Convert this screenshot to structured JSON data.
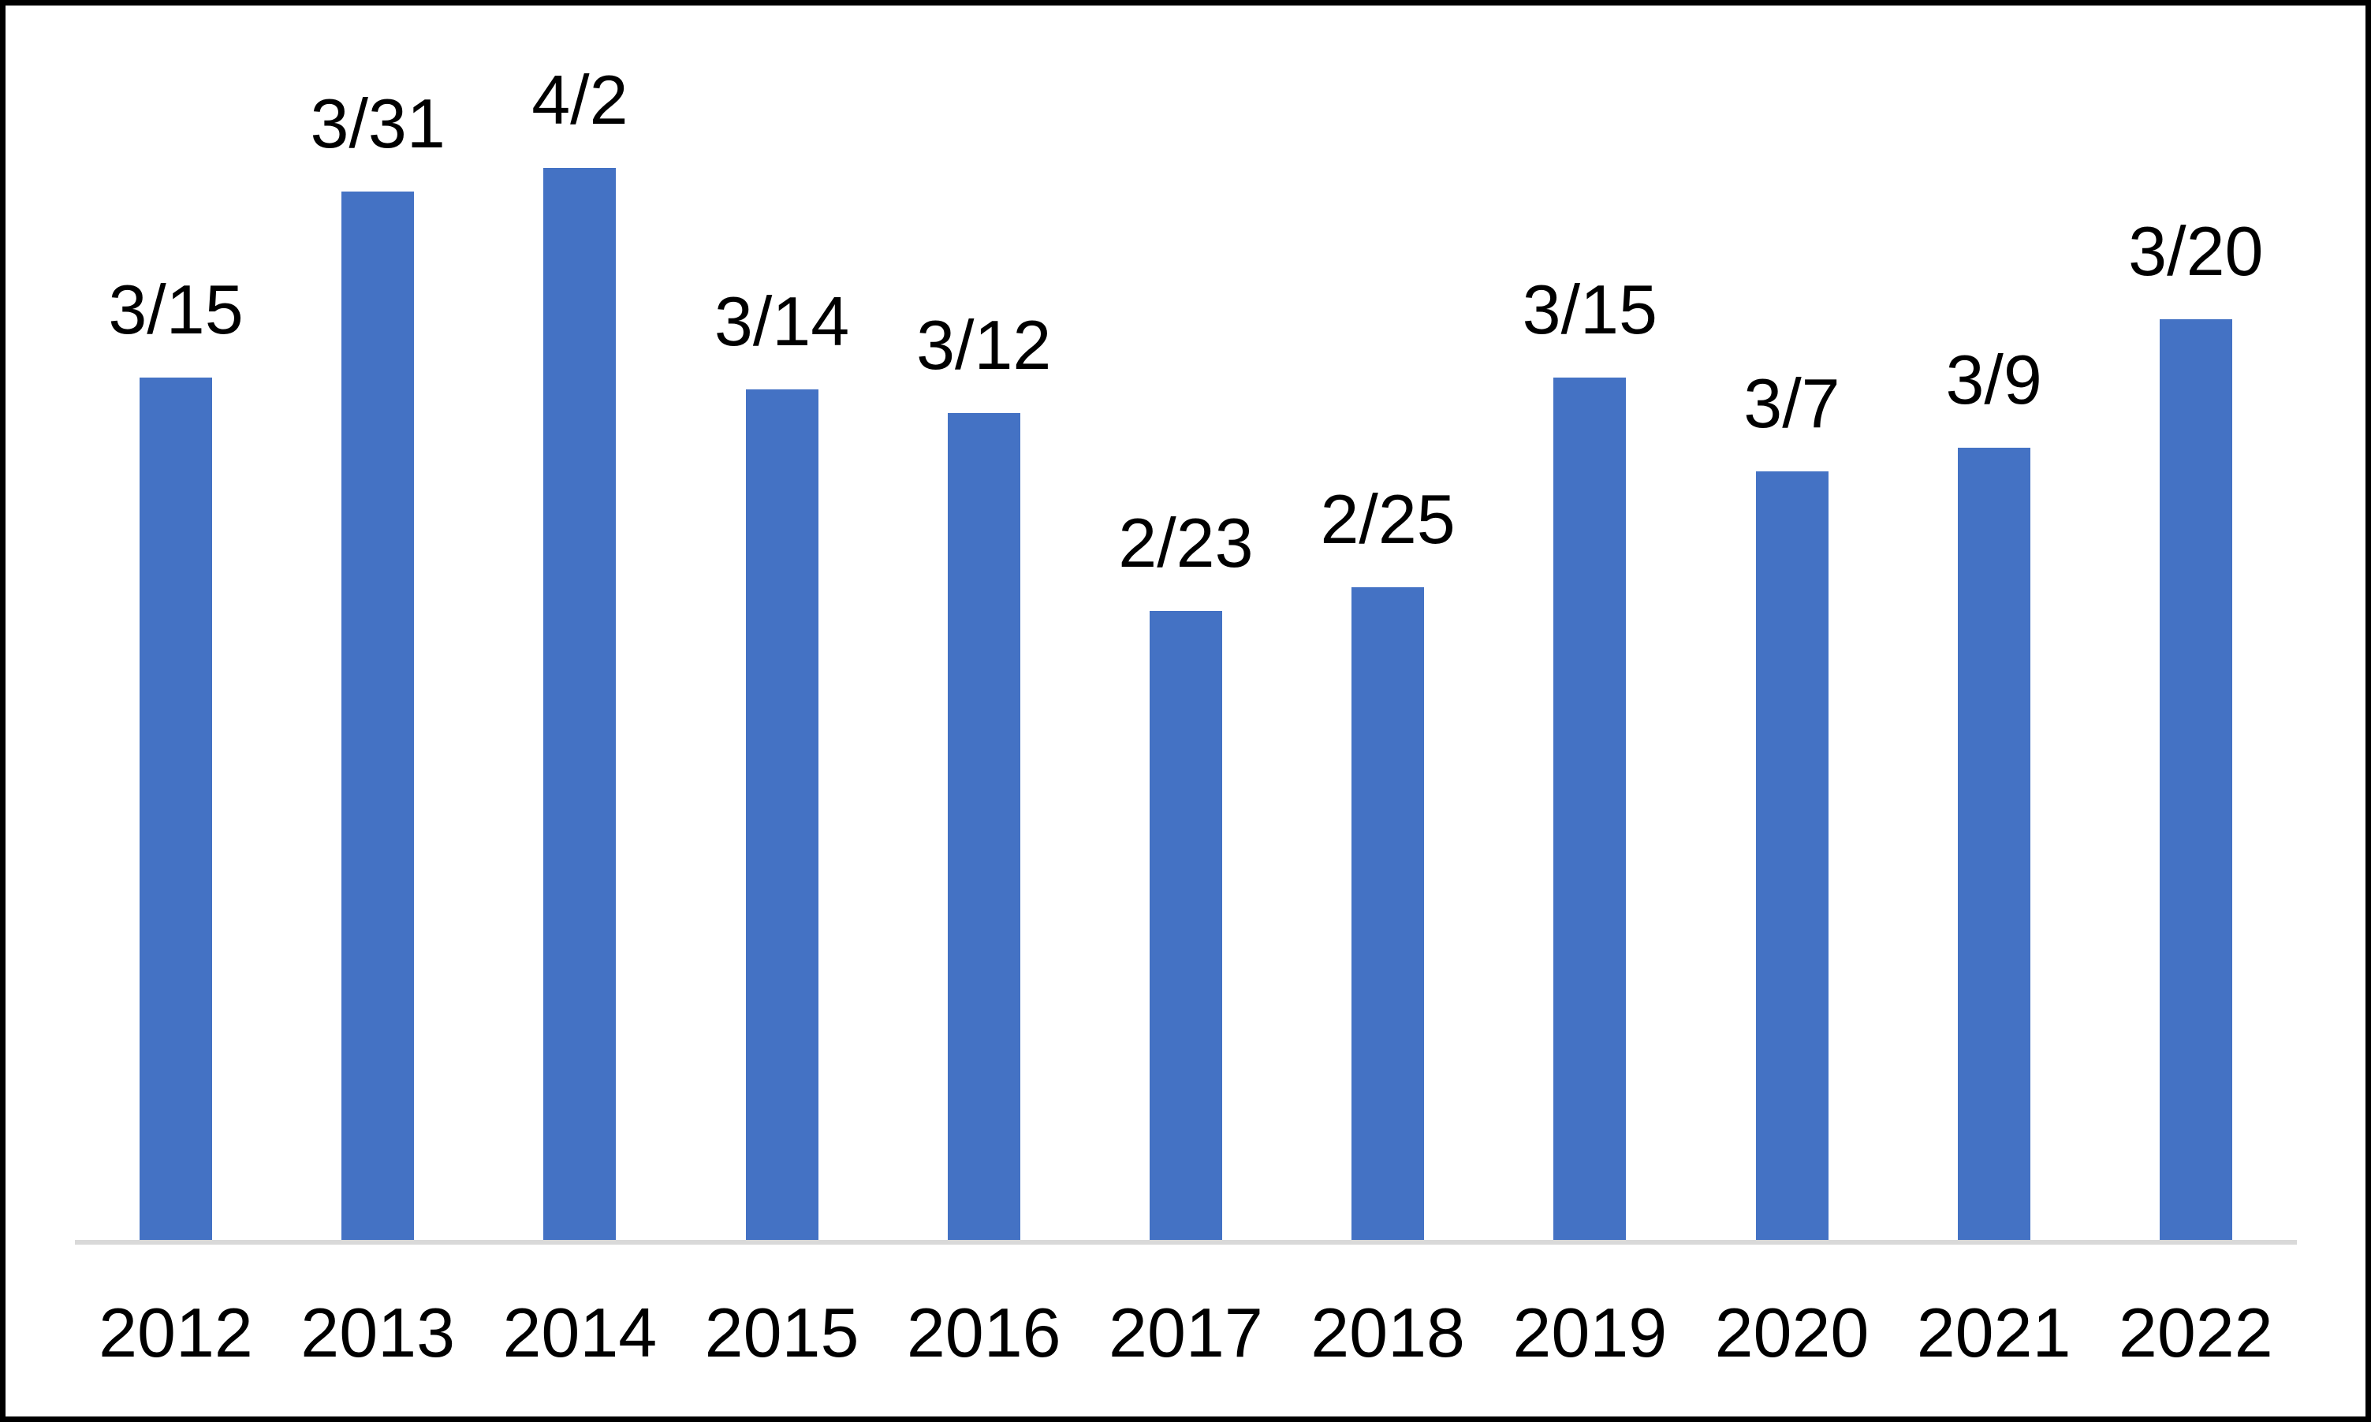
{
  "chart_data": {
    "type": "bar",
    "title": "",
    "xlabel": "",
    "ylabel": "",
    "categories": [
      "2012",
      "2013",
      "2014",
      "2015",
      "2016",
      "2017",
      "2018",
      "2019",
      "2020",
      "2021",
      "2022"
    ],
    "bar_date_labels": [
      "3/15",
      "3/31",
      "4/2",
      "3/14",
      "3/12",
      "2/23",
      "2/25",
      "3/15",
      "3/7",
      "3/9",
      "3/20"
    ],
    "values_day_of_year": [
      74,
      90,
      92,
      73,
      71,
      54,
      56,
      74,
      66,
      68,
      79
    ],
    "series": [
      {
        "name": "date",
        "labels": [
          "3/15",
          "3/31",
          "4/2",
          "3/14",
          "3/12",
          "2/23",
          "2/25",
          "3/15",
          "3/7",
          "3/9",
          "3/20"
        ],
        "values": [
          74,
          90,
          92,
          73,
          71,
          54,
          56,
          74,
          66,
          68,
          79
        ]
      }
    ],
    "ylim": [
      0,
      100
    ],
    "grid": false,
    "legend": false,
    "y_axis_visible": false,
    "colors": {
      "bar": "#4472C4",
      "axis_line": "#D9D9D9",
      "label_text": "#000000",
      "background": "#FFFFFF",
      "frame_border": "#000000"
    }
  }
}
